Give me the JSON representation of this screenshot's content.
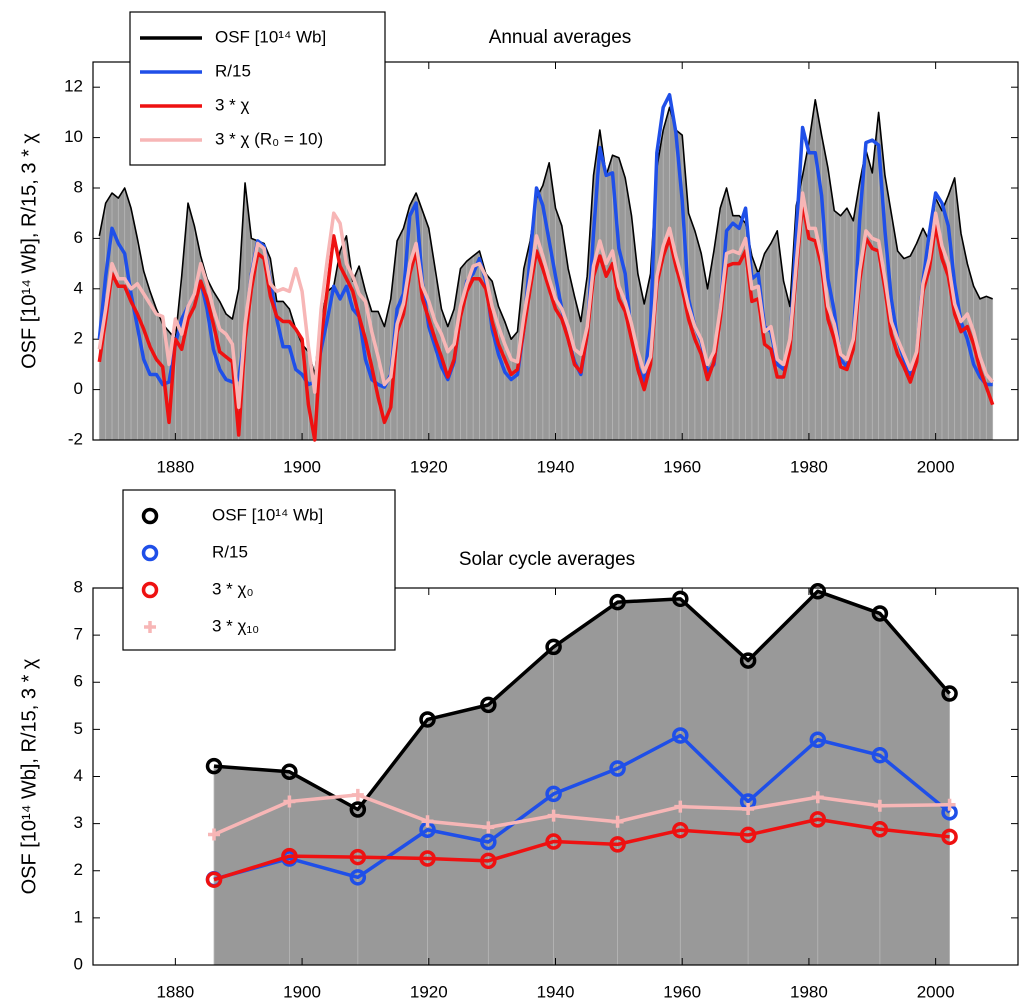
{
  "chart_data": [
    {
      "type": "line",
      "title": "Annual averages",
      "ylabel": "OSF [10¹⁴ Wb], R/15, 3 * χ",
      "x": [
        1868,
        1869,
        1870,
        1871,
        1872,
        1873,
        1874,
        1875,
        1876,
        1877,
        1878,
        1879,
        1880,
        1881,
        1882,
        1883,
        1884,
        1885,
        1886,
        1887,
        1888,
        1889,
        1890,
        1891,
        1892,
        1893,
        1894,
        1895,
        1896,
        1897,
        1898,
        1899,
        1900,
        1901,
        1902,
        1903,
        1904,
        1905,
        1906,
        1907,
        1908,
        1909,
        1910,
        1911,
        1912,
        1913,
        1914,
        1915,
        1916,
        1917,
        1918,
        1919,
        1920,
        1921,
        1922,
        1923,
        1924,
        1925,
        1926,
        1927,
        1928,
        1929,
        1930,
        1931,
        1932,
        1933,
        1934,
        1935,
        1936,
        1937,
        1938,
        1939,
        1940,
        1941,
        1942,
        1943,
        1944,
        1945,
        1946,
        1947,
        1948,
        1949,
        1950,
        1951,
        1952,
        1953,
        1954,
        1955,
        1956,
        1957,
        1958,
        1959,
        1960,
        1961,
        1962,
        1963,
        1964,
        1965,
        1966,
        1967,
        1968,
        1969,
        1970,
        1971,
        1972,
        1973,
        1974,
        1975,
        1976,
        1977,
        1978,
        1979,
        1980,
        1981,
        1982,
        1983,
        1984,
        1985,
        1986,
        1987,
        1988,
        1989,
        1990,
        1991,
        1992,
        1993,
        1994,
        1995,
        1996,
        1997,
        1998,
        1999,
        2000,
        2001,
        2002,
        2003,
        2004,
        2005,
        2006,
        2007,
        2008,
        2009
      ],
      "series": [
        {
          "name": "OSF [10¹⁴ Wb]",
          "color": "#000000",
          "fill": "#999999",
          "width": 1.6,
          "values": [
            6.1,
            7.4,
            7.8,
            7.6,
            8.0,
            7.2,
            6.0,
            4.7,
            3.9,
            3.2,
            2.6,
            2.3,
            2.0,
            4.5,
            7.4,
            6.5,
            5.3,
            4.4,
            3.9,
            3.5,
            3.0,
            2.8,
            4.0,
            8.2,
            6.0,
            5.9,
            5.8,
            5.2,
            3.5,
            3.5,
            3.2,
            2.4,
            1.8,
            1.5,
            0.6,
            2.9,
            3.9,
            4.1,
            5.5,
            6.1,
            4.3,
            4.9,
            3.9,
            3.1,
            3.1,
            2.5,
            3.6,
            5.9,
            6.4,
            7.3,
            7.8,
            7.1,
            6.4,
            4.8,
            3.2,
            2.5,
            3.2,
            4.8,
            5.1,
            5.3,
            5.5,
            4.6,
            4.3,
            3.3,
            2.7,
            2.0,
            2.3,
            4.8,
            5.9,
            7.6,
            8.1,
            9.0,
            7.2,
            6.5,
            4.8,
            3.7,
            2.7,
            4.5,
            8.5,
            10.3,
            8.5,
            9.3,
            9.2,
            8.4,
            6.9,
            4.6,
            3.4,
            4.6,
            8.8,
            10.3,
            11.2,
            10.3,
            10.1,
            7.0,
            6.3,
            5.4,
            4.0,
            5.5,
            7.2,
            8.0,
            6.9,
            6.9,
            6.6,
            5.3,
            4.6,
            5.4,
            5.8,
            6.3,
            4.3,
            3.3,
            7.3,
            8.5,
            9.8,
            11.5,
            10.1,
            8.8,
            7.1,
            6.9,
            7.2,
            6.7,
            8.2,
            9.5,
            8.6,
            11.0,
            8.5,
            7.0,
            5.5,
            5.2,
            5.3,
            5.8,
            6.4,
            5.9,
            7.6,
            7.1,
            7.7,
            8.4,
            6.2,
            5.0,
            4.1,
            3.6,
            3.7,
            3.6
          ]
        },
        {
          "name": "R/15",
          "color": "#1f4fe8",
          "width": 3.5,
          "values": [
            2.0,
            4.5,
            6.4,
            5.8,
            5.4,
            3.8,
            2.5,
            1.2,
            0.6,
            0.6,
            0.2,
            0.3,
            1.8,
            2.8,
            3.3,
            3.8,
            4.3,
            3.2,
            1.6,
            0.8,
            0.4,
            0.3,
            0.4,
            2.3,
            4.6,
            5.9,
            5.7,
            4.3,
            2.8,
            1.7,
            1.7,
            0.8,
            0.6,
            0.2,
            0.3,
            1.6,
            2.8,
            4.1,
            3.6,
            4.1,
            3.2,
            2.9,
            1.2,
            0.4,
            0.2,
            0.1,
            0.6,
            3.2,
            3.8,
            6.9,
            7.4,
            4.2,
            2.5,
            1.7,
            0.9,
            0.4,
            1.1,
            3.0,
            4.3,
            4.6,
            5.2,
            4.3,
            2.4,
            1.4,
            0.7,
            0.4,
            0.6,
            2.4,
            5.3,
            8.0,
            7.3,
            5.9,
            4.5,
            3.2,
            2.0,
            1.1,
            0.6,
            2.2,
            6.2,
            9.6,
            8.5,
            8.6,
            5.6,
            4.6,
            2.1,
            0.9,
            0.3,
            2.5,
            9.4,
            11.2,
            11.7,
            10.2,
            7.5,
            3.6,
            2.5,
            1.9,
            0.7,
            1.0,
            3.1,
            6.3,
            6.6,
            6.4,
            7.2,
            4.4,
            4.6,
            2.5,
            2.3,
            1.0,
            0.8,
            1.8,
            6.2,
            10.4,
            9.4,
            9.4,
            7.7,
            4.4,
            3.1,
            1.2,
            0.9,
            2.0,
            6.7,
            9.8,
            9.9,
            9.7,
            6.3,
            3.6,
            2.0,
            1.2,
            0.6,
            1.4,
            4.3,
            6.2,
            7.8,
            7.4,
            6.5,
            4.2,
            2.7,
            2.0,
            1.0,
            0.5,
            0.2,
            0.2
          ]
        },
        {
          "name": "3 * χ",
          "color": "#ee1111",
          "width": 3.5,
          "values": [
            1.1,
            2.8,
            4.6,
            4.1,
            4.1,
            3.5,
            3.0,
            2.4,
            1.7,
            1.2,
            0.9,
            -1.3,
            2.0,
            1.6,
            2.8,
            3.3,
            4.3,
            3.6,
            2.6,
            1.5,
            1.3,
            1.1,
            -1.8,
            2.0,
            4.0,
            5.4,
            5.2,
            3.7,
            2.9,
            2.7,
            2.7,
            2.4,
            2.0,
            -0.6,
            -2.0,
            2.0,
            4.0,
            6.1,
            4.9,
            4.4,
            3.9,
            2.9,
            2.0,
            0.9,
            -0.3,
            -1.3,
            -0.7,
            2.3,
            3.0,
            4.6,
            5.5,
            3.6,
            2.8,
            2.0,
            1.3,
            0.5,
            1.2,
            2.9,
            3.9,
            4.4,
            4.4,
            4.0,
            2.7,
            1.8,
            1.2,
            0.6,
            0.8,
            2.4,
            4.0,
            5.5,
            4.8,
            4.0,
            3.2,
            2.8,
            2.0,
            1.0,
            0.7,
            2.2,
            4.5,
            5.3,
            4.5,
            5.0,
            3.6,
            3.1,
            2.0,
            0.8,
            0.0,
            1.0,
            4.2,
            5.3,
            6.0,
            4.9,
            4.0,
            2.8,
            2.0,
            1.4,
            0.4,
            1.1,
            2.8,
            4.9,
            5.0,
            5.0,
            5.5,
            3.5,
            3.6,
            1.8,
            1.6,
            0.5,
            0.5,
            1.6,
            4.7,
            7.4,
            6.0,
            5.9,
            4.9,
            2.8,
            2.0,
            0.9,
            0.8,
            1.6,
            4.3,
            6.0,
            5.6,
            5.5,
            4.0,
            2.2,
            1.4,
            0.9,
            0.3,
            1.1,
            3.9,
            4.8,
            6.5,
            5.2,
            4.5,
            3.0,
            2.3,
            2.5,
            1.8,
            0.8,
            0.1,
            -0.6
          ]
        },
        {
          "name": "3 * χ (R₀ = 10)",
          "color": "#f7b6b6",
          "width": 3.5,
          "values": [
            1.6,
            3.2,
            5.0,
            4.4,
            4.4,
            4.0,
            4.2,
            3.8,
            3.4,
            3.0,
            2.9,
            1.0,
            2.8,
            2.2,
            3.3,
            3.8,
            5.0,
            4.2,
            3.2,
            2.4,
            2.2,
            1.8,
            -0.7,
            2.6,
            4.5,
            5.8,
            5.6,
            4.2,
            3.9,
            4.0,
            3.9,
            4.8,
            3.9,
            1.7,
            -0.1,
            3.2,
            5.2,
            7.0,
            6.6,
            5.0,
            4.5,
            3.8,
            3.5,
            2.3,
            1.3,
            0.2,
            0.5,
            2.6,
            3.4,
            5.0,
            5.8,
            4.1,
            3.5,
            2.7,
            2.2,
            1.5,
            1.8,
            3.3,
            4.2,
            4.9,
            5.0,
            4.5,
            3.3,
            2.5,
            1.8,
            1.2,
            1.1,
            2.9,
            4.4,
            6.1,
            5.3,
            4.4,
            3.6,
            3.2,
            2.5,
            1.6,
            1.4,
            2.5,
            4.9,
            5.9,
            5.0,
            5.5,
            4.1,
            3.5,
            2.6,
            1.5,
            0.7,
            1.3,
            4.5,
            5.7,
            6.4,
            5.3,
            4.4,
            3.3,
            2.5,
            2.0,
            1.0,
            1.5,
            3.2,
            5.4,
            5.5,
            5.4,
            6.0,
            4.0,
            4.1,
            2.3,
            2.5,
            1.2,
            1.0,
            2.0,
            5.0,
            7.8,
            6.4,
            6.4,
            5.3,
            3.3,
            2.6,
            1.4,
            1.2,
            2.0,
            4.7,
            6.3,
            6.0,
            5.9,
            4.4,
            2.7,
            2.0,
            1.4,
            0.8,
            1.5,
            4.2,
            5.2,
            7.0,
            5.7,
            5.0,
            3.4,
            2.7,
            3.0,
            2.3,
            1.3,
            0.6,
            0.3
          ]
        }
      ],
      "xlim": [
        1867,
        2013
      ],
      "ylim": [
        -2,
        13
      ],
      "xticks": [
        1880,
        1900,
        1920,
        1940,
        1960,
        1980,
        2000
      ],
      "yticks": [
        -2,
        0,
        2,
        4,
        6,
        8,
        10,
        12
      ],
      "legend": "upper left"
    },
    {
      "type": "line",
      "title": "Solar cycle averages",
      "ylabel": "OSF [10¹⁴ Wb], R/15, 3 * χ",
      "x": [
        1886.1,
        1898.0,
        1908.8,
        1919.8,
        1929.4,
        1939.7,
        1949.8,
        1959.7,
        1970.4,
        1981.4,
        1991.2,
        2002.2
      ],
      "series": [
        {
          "name": "OSF [10¹⁴ Wb]",
          "color": "#000000",
          "fill": "#999999",
          "marker": "o",
          "values": [
            4.22,
            4.1,
            3.3,
            5.21,
            5.52,
            6.75,
            7.7,
            7.77,
            6.46,
            7.93,
            7.46,
            5.76
          ]
        },
        {
          "name": "R/15",
          "color": "#1f4fe8",
          "marker": "o",
          "values": [
            1.82,
            2.26,
            1.86,
            2.87,
            2.61,
            3.63,
            4.17,
            4.87,
            3.47,
            4.78,
            4.45,
            3.24
          ]
        },
        {
          "name": "3 * χ₀",
          "color": "#ee1111",
          "marker": "o",
          "values": [
            1.81,
            2.31,
            2.29,
            2.26,
            2.21,
            2.62,
            2.56,
            2.86,
            2.76,
            3.09,
            2.88,
            2.72
          ]
        },
        {
          "name": "3 * χ₁₀",
          "color": "#f7b6b6",
          "marker": "+",
          "values": [
            2.77,
            3.47,
            3.61,
            3.05,
            2.92,
            3.17,
            3.04,
            3.36,
            3.31,
            3.56,
            3.38,
            3.4
          ]
        }
      ],
      "xlim": [
        1867,
        2013
      ],
      "ylim": [
        0,
        8
      ],
      "xticks": [
        1880,
        1900,
        1920,
        1940,
        1960,
        1980,
        2000
      ],
      "yticks": [
        0,
        1,
        2,
        3,
        4,
        5,
        6,
        7,
        8
      ],
      "legend": "upper left"
    }
  ]
}
